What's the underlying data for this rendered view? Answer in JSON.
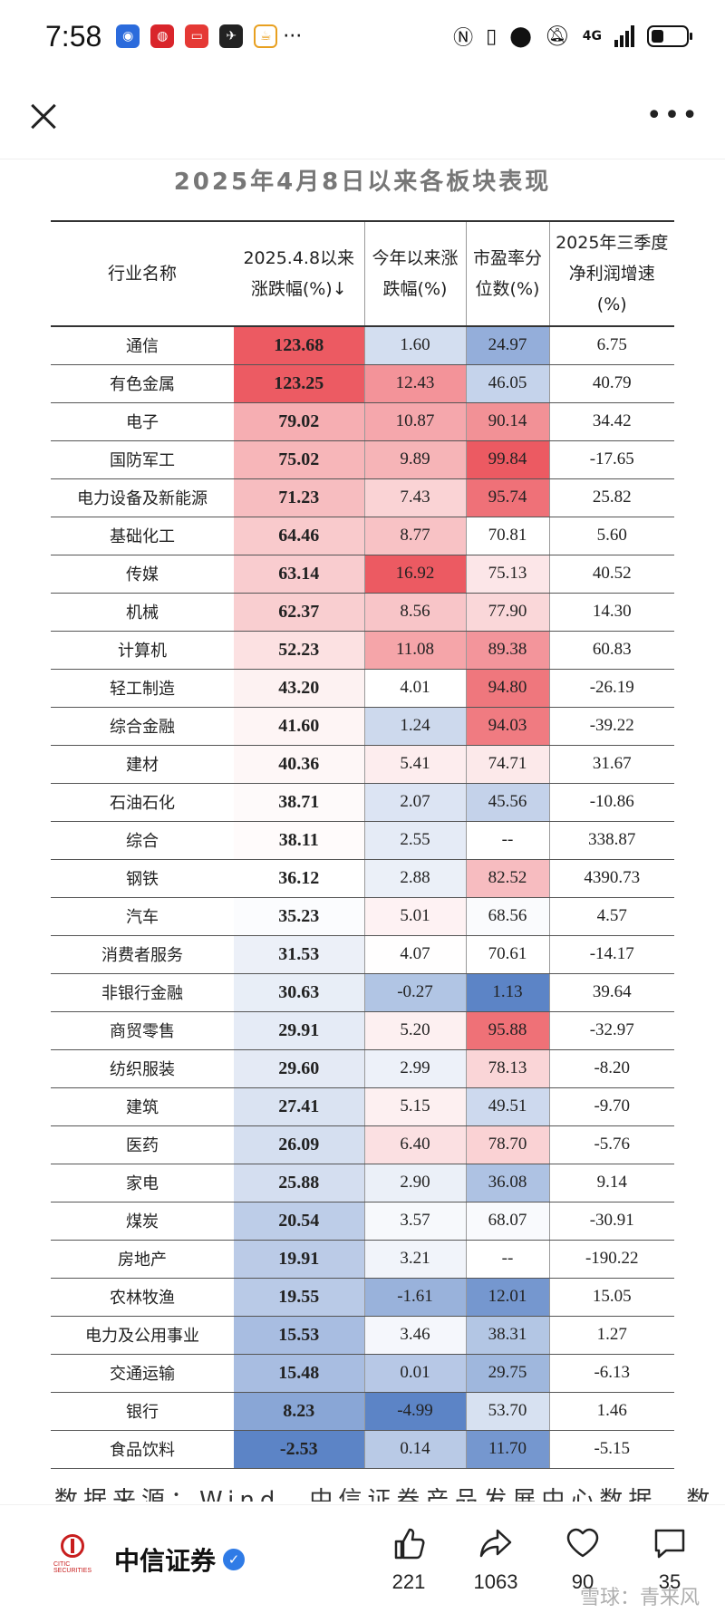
{
  "status_bar": {
    "time": "7:58",
    "network": "4G",
    "more": "···",
    "apps": [
      {
        "icon": "bulb-app-icon",
        "color": "#2b6bdc"
      },
      {
        "icon": "citic-app-icon",
        "color": "#d9252b"
      },
      {
        "icon": "red-app-icon",
        "color": "#e53935"
      },
      {
        "icon": "bird-app-icon",
        "color": "#222222"
      },
      {
        "icon": "cup-app-icon",
        "color": "#e8a020"
      }
    ]
  },
  "nav": {
    "more": "•••"
  },
  "table": {
    "title": "2025年4月8日以来各板块表现",
    "headers": [
      "行业名称",
      "2025.4.8以来\n涨跌幅(%)↓",
      "今年以来涨\n跌幅(%)",
      "市盈率分\n位数(%)",
      "2025年三季度\n净利润增速\n(%)"
    ],
    "rows": [
      {
        "name": "通信",
        "since": "123.68",
        "ytd": "1.60",
        "pe": "24.97",
        "profit": "6.75"
      },
      {
        "name": "有色金属",
        "since": "123.25",
        "ytd": "12.43",
        "pe": "46.05",
        "profit": "40.79"
      },
      {
        "name": "电子",
        "since": "79.02",
        "ytd": "10.87",
        "pe": "90.14",
        "profit": "34.42"
      },
      {
        "name": "国防军工",
        "since": "75.02",
        "ytd": "9.89",
        "pe": "99.84",
        "profit": "-17.65"
      },
      {
        "name": "电力设备及新能源",
        "since": "71.23",
        "ytd": "7.43",
        "pe": "95.74",
        "profit": "25.82"
      },
      {
        "name": "基础化工",
        "since": "64.46",
        "ytd": "8.77",
        "pe": "70.81",
        "profit": "5.60"
      },
      {
        "name": "传媒",
        "since": "63.14",
        "ytd": "16.92",
        "pe": "75.13",
        "profit": "40.52"
      },
      {
        "name": "机械",
        "since": "62.37",
        "ytd": "8.56",
        "pe": "77.90",
        "profit": "14.30"
      },
      {
        "name": "计算机",
        "since": "52.23",
        "ytd": "11.08",
        "pe": "89.38",
        "profit": "60.83"
      },
      {
        "name": "轻工制造",
        "since": "43.20",
        "ytd": "4.01",
        "pe": "94.80",
        "profit": "-26.19"
      },
      {
        "name": "综合金融",
        "since": "41.60",
        "ytd": "1.24",
        "pe": "94.03",
        "profit": "-39.22"
      },
      {
        "name": "建材",
        "since": "40.36",
        "ytd": "5.41",
        "pe": "74.71",
        "profit": "31.67"
      },
      {
        "name": "石油石化",
        "since": "38.71",
        "ytd": "2.07",
        "pe": "45.56",
        "profit": "-10.86"
      },
      {
        "name": "综合",
        "since": "38.11",
        "ytd": "2.55",
        "pe": "--",
        "profit": "338.87"
      },
      {
        "name": "钢铁",
        "since": "36.12",
        "ytd": "2.88",
        "pe": "82.52",
        "profit": "4390.73"
      },
      {
        "name": "汽车",
        "since": "35.23",
        "ytd": "5.01",
        "pe": "68.56",
        "profit": "4.57"
      },
      {
        "name": "消费者服务",
        "since": "31.53",
        "ytd": "4.07",
        "pe": "70.61",
        "profit": "-14.17"
      },
      {
        "name": "非银行金融",
        "since": "30.63",
        "ytd": "-0.27",
        "pe": "1.13",
        "profit": "39.64"
      },
      {
        "name": "商贸零售",
        "since": "29.91",
        "ytd": "5.20",
        "pe": "95.88",
        "profit": "-32.97"
      },
      {
        "name": "纺织服装",
        "since": "29.60",
        "ytd": "2.99",
        "pe": "78.13",
        "profit": "-8.20"
      },
      {
        "name": "建筑",
        "since": "27.41",
        "ytd": "5.15",
        "pe": "49.51",
        "profit": "-9.70"
      },
      {
        "name": "医药",
        "since": "26.09",
        "ytd": "6.40",
        "pe": "78.70",
        "profit": "-5.76"
      },
      {
        "name": "家电",
        "since": "25.88",
        "ytd": "2.90",
        "pe": "36.08",
        "profit": "9.14"
      },
      {
        "name": "煤炭",
        "since": "20.54",
        "ytd": "3.57",
        "pe": "68.07",
        "profit": "-30.91"
      },
      {
        "name": "房地产",
        "since": "19.91",
        "ytd": "3.21",
        "pe": "--",
        "profit": "-190.22"
      },
      {
        "name": "农林牧渔",
        "since": "19.55",
        "ytd": "-1.61",
        "pe": "12.01",
        "profit": "15.05"
      },
      {
        "name": "电力及公用事业",
        "since": "15.53",
        "ytd": "3.46",
        "pe": "38.31",
        "profit": "1.27"
      },
      {
        "name": "交通运输",
        "since": "15.48",
        "ytd": "0.01",
        "pe": "29.75",
        "profit": "-6.13"
      },
      {
        "name": "银行",
        "since": "8.23",
        "ytd": "-4.99",
        "pe": "53.70",
        "profit": "1.46"
      },
      {
        "name": "食品饮料",
        "since": "-2.53",
        "ytd": "0.14",
        "pe": "11.70",
        "profit": "-5.15"
      }
    ]
  },
  "footer_text": "数据来源：Wind，中信证券产品发展中心数据。数",
  "author": {
    "logo_sub": "CITIC SECURITIES",
    "name": "中信证券",
    "verified": "✓"
  },
  "actions": [
    {
      "icon": "thumbs-up-icon",
      "count": "221"
    },
    {
      "icon": "share-icon",
      "count": "1063"
    },
    {
      "icon": "heart-icon",
      "count": "90"
    },
    {
      "icon": "comment-icon",
      "count": "35"
    }
  ],
  "watermark": "雪球：青来风",
  "colors": {
    "red": "#ec5a62",
    "blue": "#5c84c6",
    "neutral": "#ffffff"
  }
}
